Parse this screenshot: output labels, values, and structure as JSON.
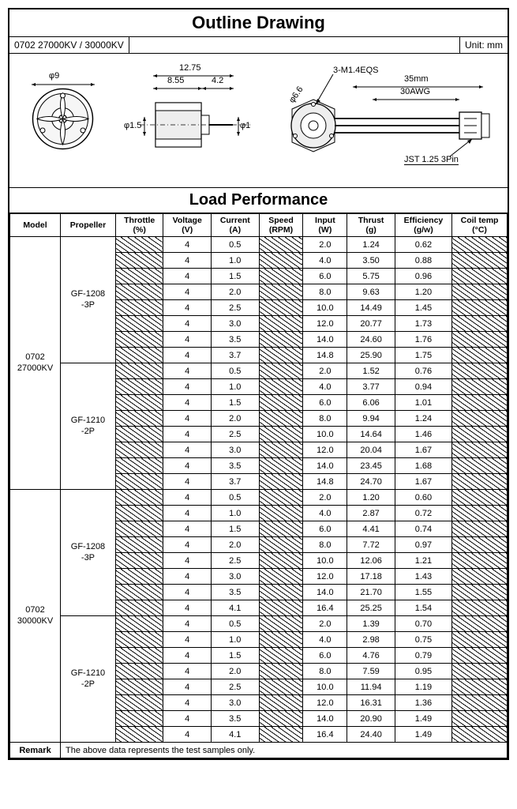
{
  "outline": {
    "title": "Outline Drawing",
    "model_label": "0702 27000KV / 30000KV",
    "unit_label": "Unit: mm",
    "dims": {
      "phi9": "φ9",
      "phi1p5": "φ1.5",
      "phi1": "φ1",
      "phi6p6": "φ6.6",
      "w12_75": "12.75",
      "w8_55": "8.55",
      "w4_2": "4.2",
      "m14": "3-M1.4EQS",
      "len35": "35mm",
      "awg": "30AWG",
      "jst": "JST 1.25 3Pin"
    }
  },
  "load": {
    "title": "Load Performance",
    "headers": {
      "model": "Model",
      "propeller": "Propeller",
      "throttle": "Throttle\n(%)",
      "voltage": "Voltage\n(V)",
      "current": "Current\n(A)",
      "speed": "Speed\n(RPM)",
      "input": "Input\n(W)",
      "thrust": "Thrust\n(g)",
      "efficiency": "Efficiency\n(g/w)",
      "coil_temp": "Coil temp\n(°C)"
    },
    "groups": [
      {
        "model": "0702\n27000KV",
        "props": [
          {
            "name": "GF-1208\n-3P",
            "rows": [
              {
                "v": "4",
                "a": "0.5",
                "w": "2.0",
                "t": "1.24",
                "e": "0.62"
              },
              {
                "v": "4",
                "a": "1.0",
                "w": "4.0",
                "t": "3.50",
                "e": "0.88"
              },
              {
                "v": "4",
                "a": "1.5",
                "w": "6.0",
                "t": "5.75",
                "e": "0.96"
              },
              {
                "v": "4",
                "a": "2.0",
                "w": "8.0",
                "t": "9.63",
                "e": "1.20"
              },
              {
                "v": "4",
                "a": "2.5",
                "w": "10.0",
                "t": "14.49",
                "e": "1.45"
              },
              {
                "v": "4",
                "a": "3.0",
                "w": "12.0",
                "t": "20.77",
                "e": "1.73"
              },
              {
                "v": "4",
                "a": "3.5",
                "w": "14.0",
                "t": "24.60",
                "e": "1.76"
              },
              {
                "v": "4",
                "a": "3.7",
                "w": "14.8",
                "t": "25.90",
                "e": "1.75"
              }
            ]
          },
          {
            "name": "GF-1210\n-2P",
            "rows": [
              {
                "v": "4",
                "a": "0.5",
                "w": "2.0",
                "t": "1.52",
                "e": "0.76"
              },
              {
                "v": "4",
                "a": "1.0",
                "w": "4.0",
                "t": "3.77",
                "e": "0.94"
              },
              {
                "v": "4",
                "a": "1.5",
                "w": "6.0",
                "t": "6.06",
                "e": "1.01"
              },
              {
                "v": "4",
                "a": "2.0",
                "w": "8.0",
                "t": "9.94",
                "e": "1.24"
              },
              {
                "v": "4",
                "a": "2.5",
                "w": "10.0",
                "t": "14.64",
                "e": "1.46"
              },
              {
                "v": "4",
                "a": "3.0",
                "w": "12.0",
                "t": "20.04",
                "e": "1.67"
              },
              {
                "v": "4",
                "a": "3.5",
                "w": "14.0",
                "t": "23.45",
                "e": "1.68"
              },
              {
                "v": "4",
                "a": "3.7",
                "w": "14.8",
                "t": "24.70",
                "e": "1.67"
              }
            ]
          }
        ]
      },
      {
        "model": "0702\n30000KV",
        "props": [
          {
            "name": "GF-1208\n-3P",
            "rows": [
              {
                "v": "4",
                "a": "0.5",
                "w": "2.0",
                "t": "1.20",
                "e": "0.60"
              },
              {
                "v": "4",
                "a": "1.0",
                "w": "4.0",
                "t": "2.87",
                "e": "0.72"
              },
              {
                "v": "4",
                "a": "1.5",
                "w": "6.0",
                "t": "4.41",
                "e": "0.74"
              },
              {
                "v": "4",
                "a": "2.0",
                "w": "8.0",
                "t": "7.72",
                "e": "0.97"
              },
              {
                "v": "4",
                "a": "2.5",
                "w": "10.0",
                "t": "12.06",
                "e": "1.21"
              },
              {
                "v": "4",
                "a": "3.0",
                "w": "12.0",
                "t": "17.18",
                "e": "1.43"
              },
              {
                "v": "4",
                "a": "3.5",
                "w": "14.0",
                "t": "21.70",
                "e": "1.55"
              },
              {
                "v": "4",
                "a": "4.1",
                "w": "16.4",
                "t": "25.25",
                "e": "1.54"
              }
            ]
          },
          {
            "name": "GF-1210\n-2P",
            "rows": [
              {
                "v": "4",
                "a": "0.5",
                "w": "2.0",
                "t": "1.39",
                "e": "0.70"
              },
              {
                "v": "4",
                "a": "1.0",
                "w": "4.0",
                "t": "2.98",
                "e": "0.75"
              },
              {
                "v": "4",
                "a": "1.5",
                "w": "6.0",
                "t": "4.76",
                "e": "0.79"
              },
              {
                "v": "4",
                "a": "2.0",
                "w": "8.0",
                "t": "7.59",
                "e": "0.95"
              },
              {
                "v": "4",
                "a": "2.5",
                "w": "10.0",
                "t": "11.94",
                "e": "1.19"
              },
              {
                "v": "4",
                "a": "3.0",
                "w": "12.0",
                "t": "16.31",
                "e": "1.36"
              },
              {
                "v": "4",
                "a": "3.5",
                "w": "14.0",
                "t": "20.90",
                "e": "1.49"
              },
              {
                "v": "4",
                "a": "4.1",
                "w": "16.4",
                "t": "24.40",
                "e": "1.49"
              }
            ]
          }
        ]
      }
    ],
    "remark_label": "Remark",
    "remark_text": "The above data represents the test samples only."
  },
  "style": {
    "border_color": "#000000",
    "bg_color": "#ffffff",
    "font_family": "Arial",
    "title_fontsize": 22,
    "section_fontsize": 20,
    "table_fontsize": 11,
    "header_fontsize": 10.5,
    "hatch_angle_deg": 35
  }
}
